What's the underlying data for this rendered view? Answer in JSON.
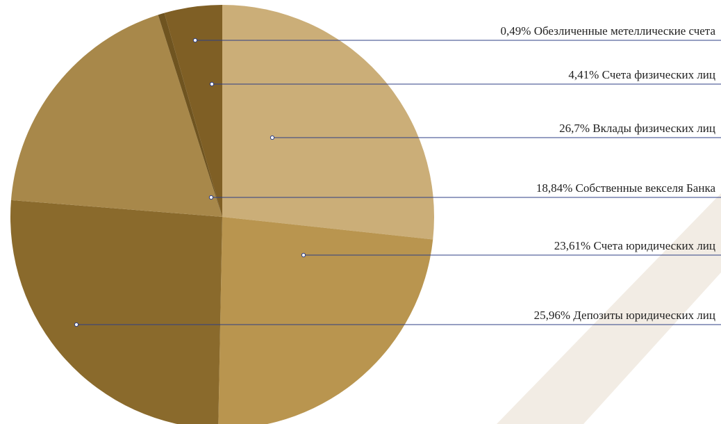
{
  "chart_data": {
    "type": "pie",
    "categories": [
      "Обезличенные метеллические счета",
      "Счета физических лиц",
      "Вклады физических лиц",
      "Собственные векселя Банка",
      "Счета юридических лиц",
      "Депозиты юридических лиц"
    ],
    "values": [
      0.49,
      4.41,
      26.7,
      18.84,
      23.61,
      25.96
    ],
    "value_labels": [
      "0,49%",
      "4,41%",
      "26,7%",
      "18,84%",
      "23,61%",
      "25,96%"
    ],
    "colors": [
      "#6f5420",
      "#7f5f25",
      "#cbae78",
      "#a8884a",
      "#b9954f",
      "#8a6a2c"
    ]
  }
}
